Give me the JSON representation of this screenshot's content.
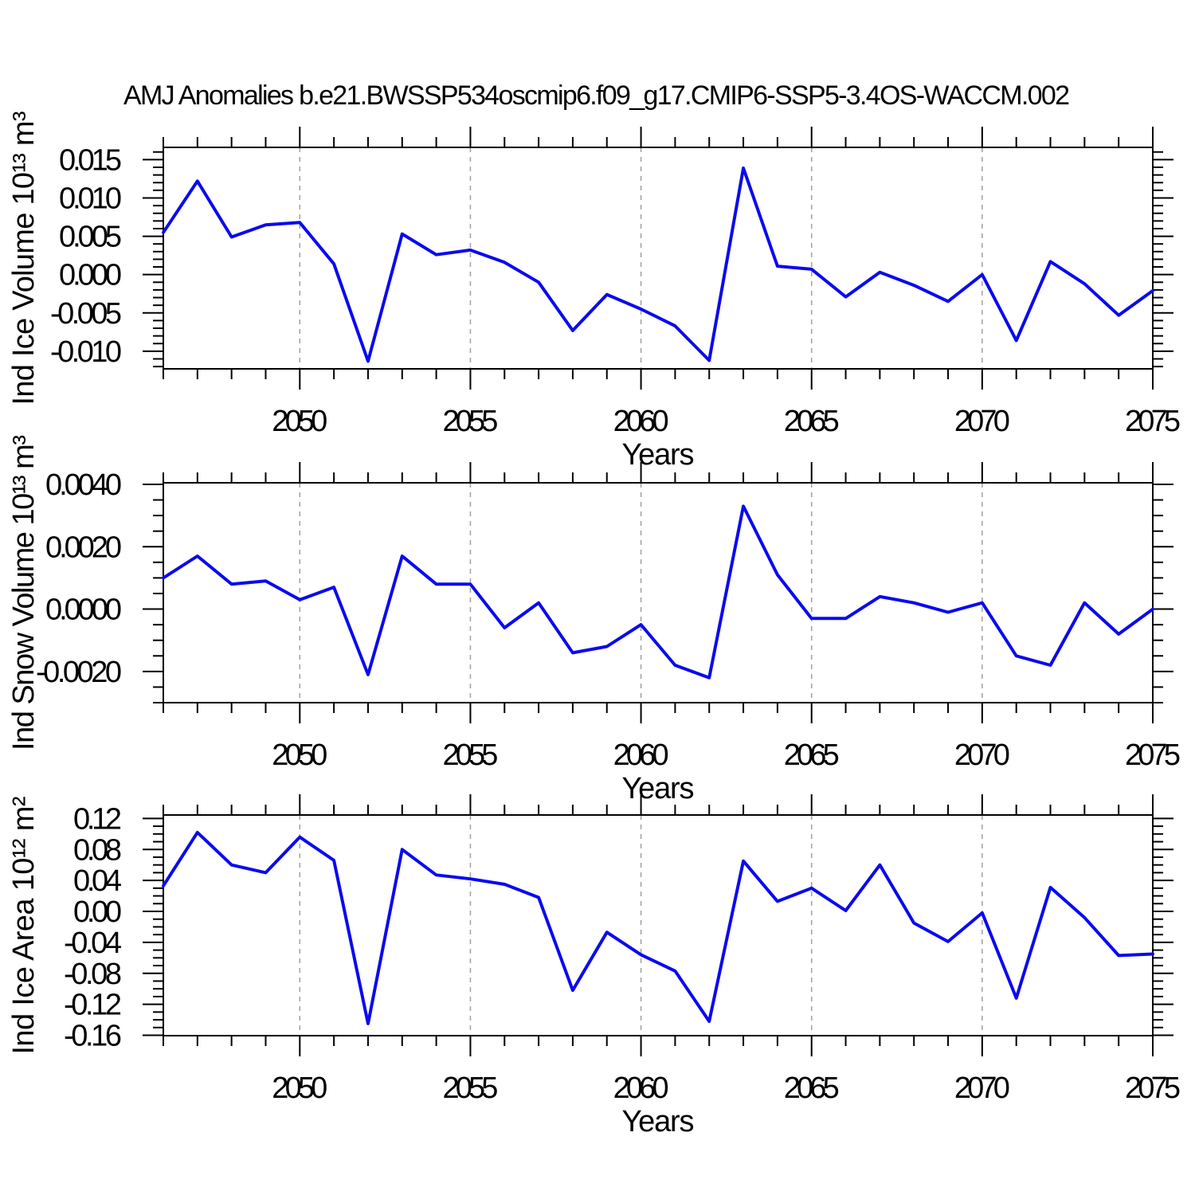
{
  "title": "AMJ Anomalies b.e21.BWSSP534oscmip6.f09_g17.CMIP6-SSP5-3.4OS-WACCM.002",
  "style": {
    "line_color": "#0a0aee",
    "grid_color": "#a0a0a0",
    "axis_color": "#000000",
    "background": "#ffffff"
  },
  "chart_data": [
    {
      "type": "line",
      "ylabel": "Ind Ice Volume 10¹³ m³",
      "xlabel": "Years",
      "xlim": [
        2046,
        2075
      ],
      "ylim": [
        -0.0123,
        0.0166
      ],
      "grid": "vertical-dashed",
      "legend": "none",
      "xticks_major": [
        2050,
        2055,
        2060,
        2065,
        2070,
        2075
      ],
      "xtick_labels": [
        "2050",
        "2055",
        "2060",
        "2065",
        "2070",
        "2075"
      ],
      "xtick_minor_step": 1,
      "grid_x": [
        2050,
        2055,
        2060,
        2065,
        2070
      ],
      "ytick_values": [
        0.015,
        0.01,
        0.005,
        0.0,
        -0.005,
        -0.01
      ],
      "ytick_labels": [
        "0.015",
        "0.010",
        "0.005",
        "0.000",
        "-0.005",
        "-0.010"
      ],
      "ytick_minor_step": 0.001,
      "x": [
        2046,
        2047,
        2048,
        2049,
        2050,
        2051,
        2052,
        2053,
        2054,
        2055,
        2056,
        2057,
        2058,
        2059,
        2060,
        2061,
        2062,
        2063,
        2064,
        2065,
        2066,
        2067,
        2068,
        2069,
        2070,
        2071,
        2072,
        2073,
        2074,
        2075
      ],
      "values": [
        0.0055,
        0.0122,
        0.0049,
        0.0065,
        0.0068,
        0.0014,
        -0.0113,
        0.0053,
        0.0026,
        0.0032,
        0.0016,
        -0.001,
        -0.0073,
        -0.0026,
        -0.0045,
        -0.0067,
        -0.0112,
        0.0139,
        0.0011,
        0.0007,
        -0.0029,
        0.0003,
        -0.0014,
        -0.0035,
        0.0,
        -0.0086,
        0.0017,
        -0.0012,
        -0.0053,
        -0.0021
      ]
    },
    {
      "type": "line",
      "ylabel": "Ind Snow Volume 10¹³ m³",
      "xlabel": "Years",
      "xlim": [
        2046,
        2075
      ],
      "ylim": [
        -0.003,
        0.00405
      ],
      "grid": "vertical-dashed",
      "legend": "none",
      "xticks_major": [
        2050,
        2055,
        2060,
        2065,
        2070,
        2075
      ],
      "xtick_labels": [
        "2050",
        "2055",
        "2060",
        "2065",
        "2070",
        "2075"
      ],
      "xtick_minor_step": 1,
      "grid_x": [
        2050,
        2055,
        2060,
        2065,
        2070
      ],
      "ytick_values": [
        0.004,
        0.002,
        0.0,
        -0.002
      ],
      "ytick_labels": [
        "0.0040",
        "0.0020",
        "0.0000",
        "-0.0020"
      ],
      "ytick_minor_step": 0.0005,
      "x": [
        2046,
        2047,
        2048,
        2049,
        2050,
        2051,
        2052,
        2053,
        2054,
        2055,
        2056,
        2057,
        2058,
        2059,
        2060,
        2061,
        2062,
        2063,
        2064,
        2065,
        2066,
        2067,
        2068,
        2069,
        2070,
        2071,
        2072,
        2073,
        2074,
        2075
      ],
      "values": [
        0.001,
        0.0017,
        0.0008,
        0.0009,
        0.0003,
        0.0007,
        -0.0021,
        0.0017,
        0.0008,
        0.0008,
        -0.0006,
        0.0002,
        -0.0014,
        -0.0012,
        -0.0005,
        -0.0018,
        -0.0022,
        0.0033,
        0.0011,
        -0.0003,
        -0.0003,
        0.0004,
        0.0002,
        -0.0001,
        0.0002,
        -0.0015,
        -0.0018,
        0.0002,
        -0.0008,
        0.0
      ]
    },
    {
      "type": "line",
      "ylabel": "Ind Ice Area 10¹² m²",
      "xlabel": "Years",
      "xlim": [
        2046,
        2075
      ],
      "ylim": [
        -0.1605,
        0.1245
      ],
      "grid": "vertical-dashed",
      "legend": "none",
      "xticks_major": [
        2050,
        2055,
        2060,
        2065,
        2070,
        2075
      ],
      "xtick_labels": [
        "2050",
        "2055",
        "2060",
        "2065",
        "2070",
        "2075"
      ],
      "xtick_minor_step": 1,
      "grid_x": [
        2050,
        2055,
        2060,
        2065,
        2070
      ],
      "ytick_values": [
        0.12,
        0.08,
        0.04,
        0.0,
        -0.04,
        -0.08,
        -0.12,
        -0.16
      ],
      "ytick_labels": [
        "0.12",
        "0.08",
        "0.04",
        "0.00",
        "-0.04",
        "-0.08",
        "-0.12",
        "-0.16"
      ],
      "ytick_minor_step": 0.01,
      "x": [
        2046,
        2047,
        2048,
        2049,
        2050,
        2051,
        2052,
        2053,
        2054,
        2055,
        2056,
        2057,
        2058,
        2059,
        2060,
        2061,
        2062,
        2063,
        2064,
        2065,
        2066,
        2067,
        2068,
        2069,
        2070,
        2071,
        2072,
        2073,
        2074,
        2075
      ],
      "values": [
        0.033,
        0.102,
        0.06,
        0.05,
        0.096,
        0.066,
        -0.145,
        0.08,
        0.047,
        0.042,
        0.035,
        0.018,
        -0.102,
        -0.027,
        -0.056,
        -0.077,
        -0.142,
        0.065,
        0.013,
        0.03,
        0.001,
        0.06,
        -0.015,
        -0.039,
        -0.002,
        -0.112,
        0.031,
        -0.008,
        -0.057,
        -0.055
      ]
    }
  ]
}
